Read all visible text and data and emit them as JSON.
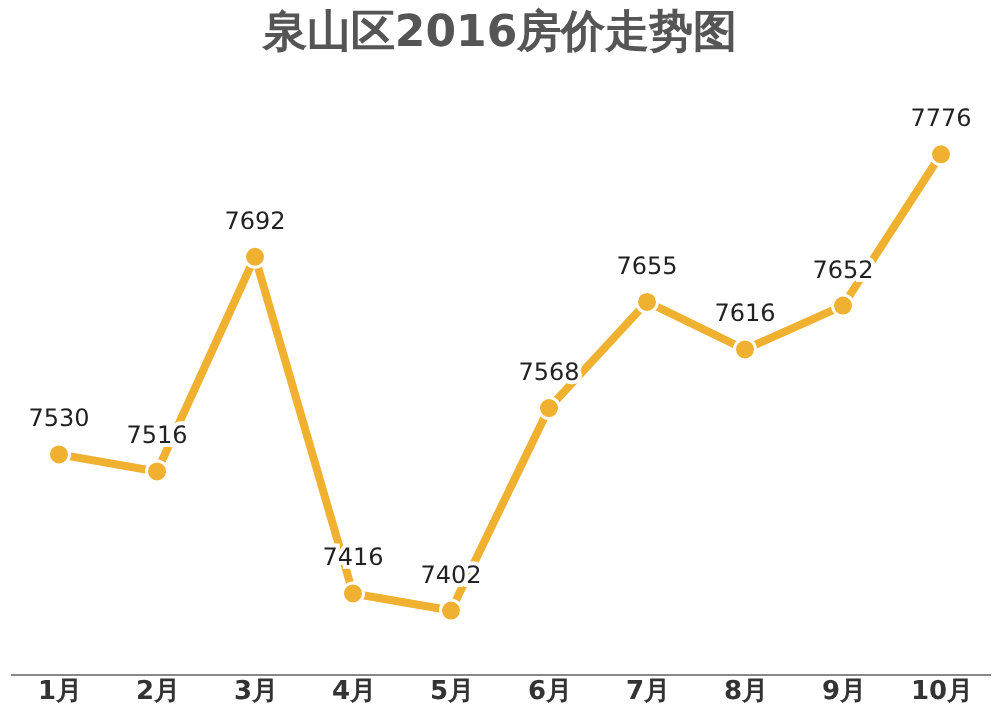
{
  "chart_data": {
    "type": "line",
    "title": "泉山区2016房价走势图",
    "categories": [
      "1月",
      "2月",
      "3月",
      "4月",
      "5月",
      "6月",
      "7月",
      "8月",
      "9月",
      "10月"
    ],
    "series": [
      {
        "color": "#f0b030",
        "values": [
          7530,
          7516,
          7692,
          7416,
          7402,
          7568,
          7655,
          7616,
          7652,
          7776
        ]
      }
    ],
    "data_labels": true,
    "marker": "circle",
    "tick_labels": "x"
  }
}
